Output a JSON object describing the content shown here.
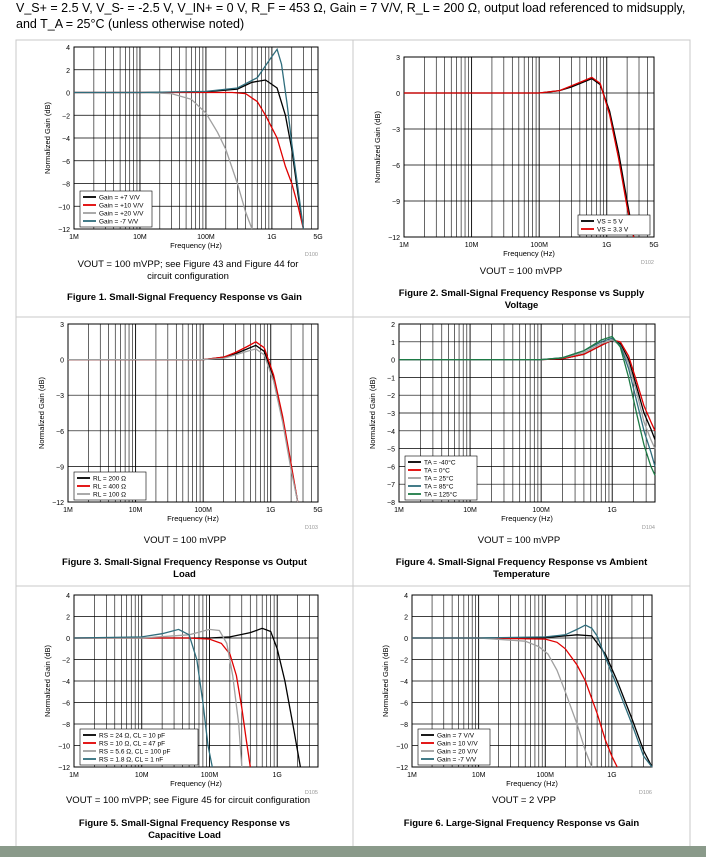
{
  "header": {
    "conditions": "V_S+ = 2.5 V, V_S- = -2.5 V, V_IN+ = 0 V, R_F = 453 Ω, Gain = 7 V/V, R_L = 200 Ω, output load referenced to midsupply, and T_A = 25°C (unless otherwise noted)"
  },
  "chart_data": [
    {
      "type": "line",
      "title": "Figure 1. Small-Signal Frequency Response vs Gain",
      "xlabel": "Frequency (Hz)",
      "ylabel": "Normalized Gain (dB)",
      "xscale": "log",
      "xlim": [
        1000000,
        5000000000
      ],
      "ylim": [
        -12,
        4
      ],
      "yticks": [
        4,
        2,
        0,
        -2,
        -4,
        -6,
        -8,
        -10,
        -12
      ],
      "xticks": [
        "1M",
        "10M",
        "100M",
        "1G",
        "5G"
      ],
      "code": "D100",
      "caption": "VOUT = 100 mVPP; see Figure 43 and Figure 44 for circuit configuration",
      "legend": "bottom-left",
      "series": [
        {
          "name": "Gain = +7 V/V",
          "color": "#000000",
          "x": [
            1000000.0,
            10000000.0,
            100000000.0,
            300000000.0,
            500000000.0,
            800000000.0,
            1200000000.0,
            1600000000.0,
            2000000000.0,
            2500000000.0,
            3000000000.0
          ],
          "y": [
            0,
            0,
            0.05,
            0.3,
            0.9,
            1.1,
            0.4,
            -2,
            -5,
            -9,
            -12
          ]
        },
        {
          "name": "Gain = +10 V/V",
          "color": "#e00000",
          "x": [
            1000000.0,
            10000000.0,
            100000000.0,
            250000000.0,
            400000000.0,
            600000000.0,
            800000000.0,
            1200000000.0,
            1600000000.0,
            2000000000.0,
            2500000000.0,
            3000000000.0
          ],
          "y": [
            0,
            0,
            0,
            0,
            -0.1,
            -0.8,
            -2,
            -4,
            -6.5,
            -8,
            -10,
            -12
          ]
        },
        {
          "name": "Gain = +20 V/V",
          "color": "#a0a0a0",
          "x": [
            1000000.0,
            10000000.0,
            30000000.0,
            60000000.0,
            100000000.0,
            150000000.0,
            200000000.0,
            300000000.0,
            400000000.0,
            500000000.0
          ],
          "y": [
            0,
            0,
            -0.1,
            -0.6,
            -1.8,
            -3.5,
            -5,
            -8,
            -10.5,
            -12
          ]
        },
        {
          "name": "Gain = -7 V/V",
          "color": "#2f6d7c",
          "x": [
            1000000.0,
            10000000.0,
            100000000.0,
            300000000.0,
            600000000.0,
            900000000.0,
            1200000000.0,
            1400000000.0,
            1700000000.0,
            2000000000.0,
            2500000000.0,
            3000000000.0
          ],
          "y": [
            0,
            0,
            0.1,
            0.4,
            1.3,
            2.8,
            3.8,
            2.5,
            -1,
            -4.5,
            -8.5,
            -12
          ]
        }
      ]
    },
    {
      "type": "line",
      "title": "Figure 2. Small-Signal Frequency Response vs Supply Voltage",
      "xlabel": "Frequency (Hz)",
      "ylabel": "Normalized Gain (dB)",
      "xscale": "log",
      "xlim": [
        1000000,
        5000000000
      ],
      "ylim": [
        -12,
        3
      ],
      "yticks": [
        3,
        0,
        -3,
        -6,
        -9,
        -12
      ],
      "xticks": [
        "1M",
        "10M",
        "100M",
        "1G",
        "5G"
      ],
      "code": "D102",
      "caption": "VOUT = 100 mVPP",
      "legend": "bottom-right",
      "series": [
        {
          "name": "VS = 5 V",
          "color": "#000000",
          "x": [
            1000000.0,
            10000000.0,
            100000000.0,
            200000000.0,
            300000000.0,
            450000000.0,
            600000000.0,
            800000000.0,
            1100000000.0,
            1500000000.0,
            2000000000.0,
            2500000000.0
          ],
          "y": [
            0,
            0,
            0,
            0.2,
            0.5,
            0.9,
            1.2,
            0.7,
            -1.5,
            -5,
            -9,
            -12
          ]
        },
        {
          "name": "VS = 3.3 V",
          "color": "#e00000",
          "x": [
            1000000.0,
            10000000.0,
            100000000.0,
            200000000.0,
            300000000.0,
            450000000.0,
            600000000.0,
            800000000.0,
            1100000000.0,
            1500000000.0,
            2000000000.0,
            2500000000.0
          ],
          "y": [
            0,
            0,
            0,
            0.2,
            0.6,
            1.0,
            1.3,
            0.8,
            -1.8,
            -5.5,
            -9.5,
            -12
          ]
        }
      ]
    },
    {
      "type": "line",
      "title": "Figure 3. Small-Signal Frequency Response vs Output Load",
      "xlabel": "Frequency (Hz)",
      "ylabel": "Normalized Gain (dB)",
      "xscale": "log",
      "xlim": [
        1000000,
        5000000000
      ],
      "ylim": [
        -12,
        3
      ],
      "yticks": [
        3,
        0,
        -3,
        -6,
        -9,
        -12
      ],
      "xticks": [
        "1M",
        "10M",
        "100M",
        "1G",
        "5G"
      ],
      "code": "D103",
      "caption": "VOUT = 100 mVPP",
      "legend": "bottom-left",
      "series": [
        {
          "name": "RL = 200 Ω",
          "color": "#000000",
          "x": [
            1000000.0,
            10000000.0,
            100000000.0,
            200000000.0,
            300000000.0,
            450000000.0,
            600000000.0,
            800000000.0,
            1100000000.0,
            1500000000.0,
            2000000000.0,
            2500000000.0
          ],
          "y": [
            0,
            0,
            0,
            0.2,
            0.5,
            0.9,
            1.2,
            0.7,
            -1.5,
            -5,
            -9,
            -12
          ]
        },
        {
          "name": "RL = 400 Ω",
          "color": "#e00000",
          "x": [
            1000000.0,
            10000000.0,
            100000000.0,
            200000000.0,
            300000000.0,
            450000000.0,
            600000000.0,
            800000000.0,
            1100000000.0,
            1500000000.0,
            2000000000.0,
            2500000000.0
          ],
          "y": [
            0,
            0,
            0,
            0.2,
            0.6,
            1.1,
            1.5,
            1.0,
            -1.3,
            -4.8,
            -8.8,
            -12
          ]
        },
        {
          "name": "RL = 100 Ω",
          "color": "#a0a0a0",
          "x": [
            1000000.0,
            10000000.0,
            100000000.0,
            200000000.0,
            300000000.0,
            450000000.0,
            600000000.0,
            800000000.0,
            1100000000.0,
            1500000000.0,
            2000000000.0,
            2500000000.0
          ],
          "y": [
            0,
            0,
            0,
            0.1,
            0.4,
            0.7,
            0.9,
            0.4,
            -1.8,
            -5.3,
            -9.3,
            -12
          ]
        }
      ]
    },
    {
      "type": "line",
      "title": "Figure 4. Small-Signal Frequency Response vs Ambient Temperature",
      "xlabel": "Frequency (Hz)",
      "ylabel": "Normalized Gain (dB)",
      "xscale": "log",
      "xlim": [
        1000000,
        4000000000
      ],
      "ylim": [
        -8,
        2
      ],
      "yticks": [
        2,
        1,
        0,
        -1,
        -2,
        -3,
        -4,
        -5,
        -6,
        -7,
        -8
      ],
      "xticks": [
        "1M",
        "10M",
        "100M",
        "1G"
      ],
      "code": "D104",
      "caption": "VOUT = 100 mVPP",
      "legend": "bottom-left",
      "series": [
        {
          "name": "TA = -40°C",
          "color": "#000000",
          "x": [
            1000000.0,
            10000000.0,
            100000000.0,
            200000000.0,
            400000000.0,
            700000000.0,
            1000000000.0,
            1300000000.0,
            1700000000.0,
            2200000000.0,
            2800000000.0,
            3500000000.0,
            4000000000.0
          ],
          "y": [
            0,
            0,
            0,
            0.05,
            0.3,
            0.8,
            1.1,
            0.9,
            0,
            -1.5,
            -3,
            -3.9,
            -4.5
          ]
        },
        {
          "name": "TA = 0°C",
          "color": "#e00000",
          "x": [
            1000000.0,
            10000000.0,
            100000000.0,
            200000000.0,
            400000000.0,
            700000000.0,
            1000000000.0,
            1300000000.0,
            1700000000.0,
            2200000000.0,
            2800000000.0,
            3500000000.0,
            4000000000.0
          ],
          "y": [
            0,
            0,
            0,
            0.05,
            0.3,
            0.8,
            1.1,
            1.0,
            0.2,
            -1.2,
            -2.6,
            -3.5,
            -4
          ]
        },
        {
          "name": "TA = 25°C",
          "color": "#a0a0a0",
          "x": [
            1000000.0,
            10000000.0,
            100000000.0,
            200000000.0,
            400000000.0,
            700000000.0,
            1000000000.0,
            1300000000.0,
            1700000000.0,
            2200000000.0,
            2800000000.0,
            3500000000.0,
            4000000000.0
          ],
          "y": [
            0,
            0,
            0,
            0.1,
            0.4,
            0.9,
            1.1,
            0.8,
            -0.2,
            -1.8,
            -3.5,
            -4.5,
            -5
          ]
        },
        {
          "name": "TA = 85°C",
          "color": "#2f6d7c",
          "x": [
            1000000.0,
            10000000.0,
            100000000.0,
            200000000.0,
            400000000.0,
            700000000.0,
            1000000000.0,
            1300000000.0,
            1700000000.0,
            2200000000.0,
            2800000000.0,
            3500000000.0,
            4000000000.0
          ],
          "y": [
            0,
            0,
            0,
            0.1,
            0.5,
            1.0,
            1.2,
            0.8,
            -0.5,
            -2.3,
            -4,
            -5.2,
            -6
          ]
        },
        {
          "name": "TA = 125°C",
          "color": "#1d7a45",
          "x": [
            1000000.0,
            10000000.0,
            100000000.0,
            200000000.0,
            400000000.0,
            700000000.0,
            1000000000.0,
            1300000000.0,
            1700000000.0,
            2200000000.0,
            2800000000.0,
            3500000000.0,
            4000000000.0
          ],
          "y": [
            0,
            0,
            0,
            0.1,
            0.5,
            1.1,
            1.3,
            0.7,
            -1,
            -3,
            -4.8,
            -6,
            -6.5
          ]
        }
      ]
    },
    {
      "type": "line",
      "title": "Figure 5. Small-Signal Frequency Response vs Capacitive Load",
      "xlabel": "Frequency (Hz)",
      "ylabel": "Normalized Gain (dB)",
      "xscale": "log",
      "xlim": [
        1000000,
        4000000000
      ],
      "ylim": [
        -12,
        4
      ],
      "yticks": [
        4,
        2,
        0,
        -2,
        -4,
        -6,
        -8,
        -10,
        -12
      ],
      "xticks": [
        "1M",
        "10M",
        "100M",
        "1G"
      ],
      "code": "D105",
      "caption": "VOUT = 100 mVPP; see Figure 45 for circuit configuration",
      "legend": "bottom-left",
      "series": [
        {
          "name": "RS = 24 Ω, CL = 10 pF",
          "color": "#000000",
          "x": [
            1000000.0,
            10000000.0,
            100000000.0,
            200000000.0,
            400000000.0,
            600000000.0,
            800000000.0,
            1000000000.0,
            1300000000.0,
            1700000000.0,
            2200000000.0
          ],
          "y": [
            0,
            0,
            0,
            0.1,
            0.5,
            0.9,
            0.6,
            -1,
            -4,
            -8,
            -12
          ]
        },
        {
          "name": "RS = 10 Ω, CL = 47 pF",
          "color": "#e00000",
          "x": [
            1000000.0,
            10000000.0,
            50000000.0,
            100000000.0,
            150000000.0,
            200000000.0,
            250000000.0,
            300000000.0,
            350000000.0,
            400000000.0
          ],
          "y": [
            0,
            0,
            0,
            -0.1,
            -0.5,
            -1.5,
            -3.5,
            -6.5,
            -9.5,
            -12
          ]
        },
        {
          "name": "RS = 5.6 Ω, CL = 100 pF",
          "color": "#a0a0a0",
          "x": [
            1000000.0,
            10000000.0,
            50000000.0,
            100000000.0,
            140000000.0,
            180000000.0,
            220000000.0,
            270000000.0,
            300000000.0
          ],
          "y": [
            0,
            0,
            0.3,
            0.8,
            0.7,
            -0.5,
            -3.5,
            -8,
            -12
          ]
        },
        {
          "name": "RS = 1.8 Ω, CL = 1 nF",
          "color": "#2f6d7c",
          "x": [
            1000000.0,
            10000000.0,
            20000000.0,
            35000000.0,
            50000000.0,
            65000000.0,
            80000000.0,
            95000000.0,
            110000000.0
          ],
          "y": [
            0,
            0.1,
            0.4,
            0.8,
            0.3,
            -2,
            -6,
            -10,
            -12
          ]
        }
      ]
    },
    {
      "type": "line",
      "title": "Figure 6. Large-Signal Frequency Response vs Gain",
      "xlabel": "Frequency (Hz)",
      "ylabel": "Normalized Gain (dB)",
      "xscale": "log",
      "xlim": [
        1000000,
        4000000000
      ],
      "ylim": [
        -12,
        4
      ],
      "yticks": [
        4,
        2,
        0,
        -2,
        -4,
        -6,
        -8,
        -10,
        -12
      ],
      "xticks": [
        "1M",
        "10M",
        "100M",
        "1G"
      ],
      "code": "D106",
      "caption": "VOUT = 2 VPP",
      "legend": "bottom-left",
      "series": [
        {
          "name": "Gain = 7 V/V",
          "color": "#000000",
          "x": [
            1000000.0,
            10000000.0,
            100000000.0,
            200000000.0,
            300000000.0,
            500000000.0,
            800000000.0,
            1200000000.0,
            2000000000.0,
            3000000000.0,
            4000000000.0
          ],
          "y": [
            0,
            0,
            0.05,
            0.2,
            0.3,
            0.2,
            -1.5,
            -4,
            -7.5,
            -10.5,
            -12
          ]
        },
        {
          "name": "Gain = 10 V/V",
          "color": "#e00000",
          "x": [
            1000000.0,
            10000000.0,
            100000000.0,
            150000000.0,
            200000000.0,
            300000000.0,
            400000000.0,
            600000000.0,
            800000000.0,
            1000000000.0,
            1200000000.0
          ],
          "y": [
            0,
            0,
            -0.1,
            -0.4,
            -1,
            -2.5,
            -4,
            -7,
            -9.5,
            -11,
            -12
          ]
        },
        {
          "name": "Gain = 20 V/V",
          "color": "#a0a0a0",
          "x": [
            1000000.0,
            10000000.0,
            50000000.0,
            80000000.0,
            110000000.0,
            150000000.0,
            200000000.0,
            300000000.0,
            400000000.0,
            500000000.0
          ],
          "y": [
            0,
            0,
            -0.3,
            -0.8,
            -1.5,
            -3,
            -5,
            -8,
            -10.5,
            -12
          ]
        },
        {
          "name": "Gain = -7 V/V",
          "color": "#2f6d7c",
          "x": [
            1000000.0,
            10000000.0,
            100000000.0,
            200000000.0,
            300000000.0,
            400000000.0,
            500000000.0,
            600000000.0,
            800000000.0,
            1200000000.0,
            2000000000.0,
            3000000000.0,
            4000000000.0
          ],
          "y": [
            0,
            0,
            0.1,
            0.3,
            0.8,
            1.2,
            0.9,
            0.2,
            -1.8,
            -4.5,
            -8,
            -11,
            -12
          ]
        }
      ]
    }
  ]
}
